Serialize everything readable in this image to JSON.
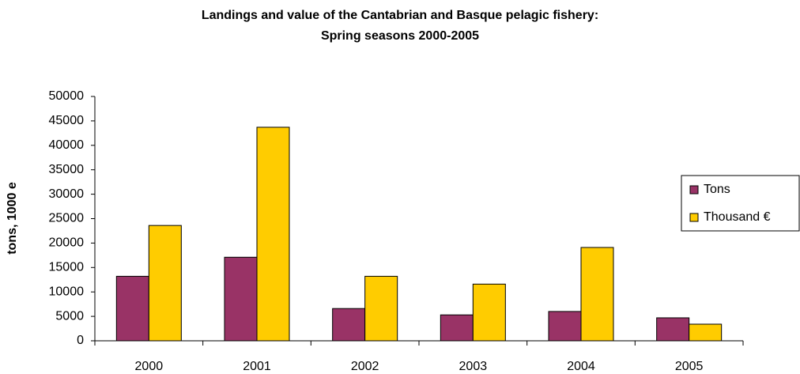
{
  "chart_data": {
    "type": "bar",
    "title": "Landings and value of the Cantabrian and Basque pelagic fishery:",
    "subtitle": "Spring seasons 2000-2005",
    "y_label": "tons, 1000 e",
    "categories": [
      "2000",
      "2001",
      "2002",
      "2003",
      "2004",
      "2005"
    ],
    "series": [
      {
        "name": "Tons",
        "color": "#993366",
        "values": [
          13200,
          17100,
          6600,
          5300,
          6000,
          4700
        ]
      },
      {
        "name": "Thousand €",
        "color": "#ffcc00",
        "values": [
          23600,
          43700,
          13200,
          11600,
          19100,
          3400
        ]
      }
    ],
    "ylim": [
      0,
      50000
    ],
    "yticks": [
      0,
      5000,
      10000,
      15000,
      20000,
      25000,
      30000,
      35000,
      40000,
      45000,
      50000
    ],
    "grid": false,
    "legend": "right"
  }
}
